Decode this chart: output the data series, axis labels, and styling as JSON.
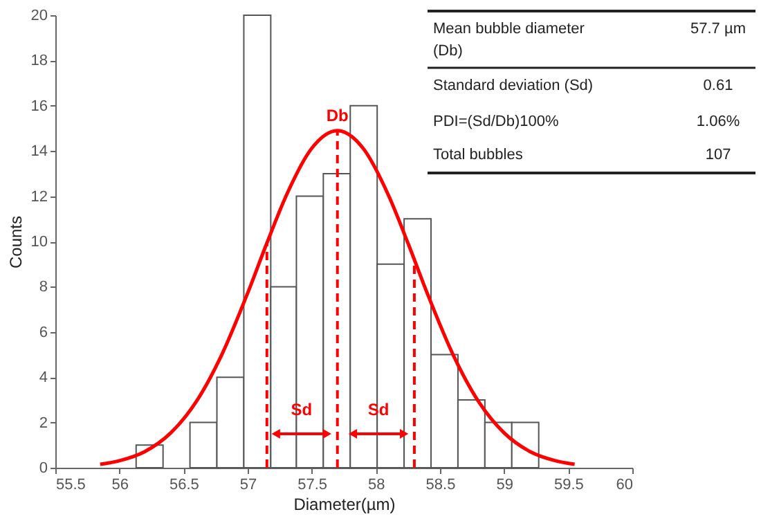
{
  "chart_data": {
    "type": "histogram",
    "xlabel": "Diameter(µm)",
    "ylabel": "Counts",
    "bins": [
      56.13,
      56.34,
      56.55,
      56.76,
      56.97,
      57.18,
      57.38,
      57.59,
      57.8,
      58.01,
      58.22,
      58.43,
      58.64,
      58.85,
      59.06,
      59.27
    ],
    "values": [
      1,
      0,
      2,
      4,
      20,
      8,
      12,
      13,
      16,
      9,
      11,
      5,
      3,
      2,
      2
    ],
    "color": "#ffffff",
    "series": [
      {
        "type": "line",
        "color": "#ff0000",
        "x": [
          55.85,
          56.0,
          56.2,
          56.4,
          56.6,
          56.8,
          57.0,
          57.15,
          57.3,
          57.5,
          57.7,
          57.9,
          58.1,
          58.25,
          58.4,
          58.6,
          58.8,
          59.0,
          59.2,
          59.4,
          59.55
        ],
        "values": [
          0.15,
          0.31,
          0.72,
          1.54,
          2.93,
          5.02,
          7.72,
          9.93,
          12.02,
          14.12,
          14.9,
          14.12,
          12.02,
          9.93,
          7.72,
          5.02,
          2.93,
          1.54,
          0.72,
          0.31,
          0.15
        ]
      }
    ],
    "ref_lines": [
      {
        "axis": "x",
        "value": 57.15,
        "label": null,
        "color": "#ff0000",
        "line_style": "dashed"
      },
      {
        "axis": "x",
        "value": 57.7,
        "label": "Db",
        "color": "#ff0000",
        "line_style": "dashed"
      },
      {
        "axis": "x",
        "value": 58.3,
        "label": null,
        "color": "#ff0000",
        "line_style": "dashed"
      }
    ],
    "annotations": [
      {
        "text": "Sd",
        "x": 57.42,
        "y": 2.4
      },
      {
        "text": "Sd",
        "x": 58.02,
        "y": 2.4
      },
      "Mean bubble diameter (Db)",
      "57.7 µm",
      "Standard deviation (Sd)",
      "0.61",
      "PDI=(Sd/Db)100%",
      "1.06%",
      "Total bubbles",
      "107"
    ],
    "xlim": [
      55.5,
      60
    ],
    "xticks": [
      55.5,
      56,
      56.5,
      57,
      57.5,
      58,
      58.5,
      59,
      59.5,
      60
    ],
    "ylim": [
      0,
      20
    ],
    "yticks": [
      0,
      2,
      4,
      6,
      8,
      10,
      12,
      14,
      16,
      18,
      20
    ],
    "grid": false
  }
}
